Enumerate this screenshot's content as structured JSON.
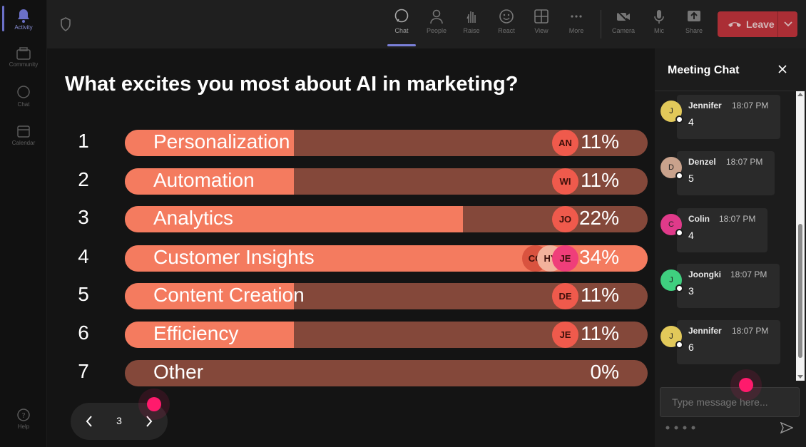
{
  "rail": {
    "items": [
      {
        "label": "Activity",
        "icon": "bell-icon"
      },
      {
        "label": "Community",
        "icon": "community-icon"
      },
      {
        "label": "Chat",
        "icon": "chat-icon"
      },
      {
        "label": "Calendar",
        "icon": "calendar-icon"
      },
      {
        "label": "Help",
        "icon": "help-icon"
      }
    ]
  },
  "toolbar": {
    "buttons": [
      {
        "label": "Chat",
        "icon": "chat-icon"
      },
      {
        "label": "People",
        "icon": "people-icon"
      },
      {
        "label": "Raise",
        "icon": "hand-icon"
      },
      {
        "label": "React",
        "icon": "smiley-icon"
      },
      {
        "label": "View",
        "icon": "grid-icon"
      },
      {
        "label": "More",
        "icon": "more-icon"
      },
      {
        "label": "Camera",
        "icon": "camera-off-icon"
      },
      {
        "label": "Mic",
        "icon": "mic-icon"
      },
      {
        "label": "Share",
        "icon": "share-icon"
      }
    ],
    "leave_label": "Leave"
  },
  "poll": {
    "question": "What excites you most about AI in marketing?",
    "options": [
      {
        "num": "1",
        "label": "Personalization",
        "pct": "11%",
        "fraction": 0.11,
        "voters": [
          "AN"
        ]
      },
      {
        "num": "2",
        "label": "Automation",
        "pct": "11%",
        "fraction": 0.11,
        "voters": [
          "WI"
        ]
      },
      {
        "num": "3",
        "label": "Analytics",
        "pct": "22%",
        "fraction": 0.22,
        "voters": [
          "JO"
        ]
      },
      {
        "num": "4",
        "label": "Customer Insights",
        "pct": "34%",
        "fraction": 0.34,
        "voters": [
          "CO",
          "HY",
          "JE"
        ]
      },
      {
        "num": "5",
        "label": "Content Creation",
        "pct": "11%",
        "fraction": 0.11,
        "voters": [
          "DE"
        ]
      },
      {
        "num": "6",
        "label": "Efficiency",
        "pct": "11%",
        "fraction": 0.11,
        "voters": [
          "JE"
        ]
      },
      {
        "num": "7",
        "label": "Other",
        "pct": "0%",
        "fraction": 0.0,
        "voters": []
      }
    ],
    "colors": {
      "fill": "#f47b5f",
      "track": "#84483a",
      "avatar": "#ef5a4c"
    }
  },
  "pager": {
    "page": "3"
  },
  "chat": {
    "title": "Meeting Chat",
    "messages": [
      {
        "initial": "J",
        "name": "Jennifer",
        "time": "18:07 PM",
        "text": "4",
        "color": "#e2c95a"
      },
      {
        "initial": "D",
        "name": "Denzel",
        "time": "18:07 PM",
        "text": "5",
        "color": "#c9a28c"
      },
      {
        "initial": "C",
        "name": "Colin",
        "time": "18:07 PM",
        "text": "4",
        "color": "#e03a8a"
      },
      {
        "initial": "J",
        "name": "Joongki",
        "time": "18:07 PM",
        "text": "3",
        "color": "#3fcf7f"
      },
      {
        "initial": "J",
        "name": "Jennifer",
        "time": "18:07 PM",
        "text": "6",
        "color": "#e2c95a"
      }
    ],
    "input_placeholder": "Type message here..."
  }
}
